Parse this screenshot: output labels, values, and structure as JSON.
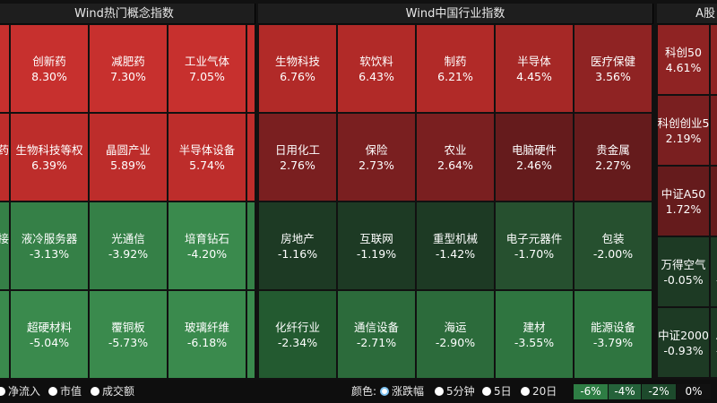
{
  "panels": {
    "hot": {
      "title": "Wind热门概念指数",
      "tiles": [
        {
          "name": "",
          "value": ""
        },
        {
          "name": "创新药",
          "value": "8.30%"
        },
        {
          "name": "减肥药",
          "value": "7.30%"
        },
        {
          "name": "工业气体",
          "value": "7.05%"
        },
        {
          "name": "",
          "value": ""
        },
        {
          "name": "药",
          "value": ""
        },
        {
          "name": "生物科技等权",
          "value": "6.39%"
        },
        {
          "name": "晶圆产业",
          "value": "5.89%"
        },
        {
          "name": "半导体设备",
          "value": "5.74%"
        },
        {
          "name": "",
          "value": ""
        },
        {
          "name": "接",
          "value": ""
        },
        {
          "name": "液冷服务器",
          "value": "-3.13%"
        },
        {
          "name": "光通信",
          "value": "-3.92%"
        },
        {
          "name": "培育钻石",
          "value": "-4.20%"
        },
        {
          "name": "",
          "value": ""
        },
        {
          "name": "",
          "value": ""
        },
        {
          "name": "超硬材料",
          "value": "-5.04%"
        },
        {
          "name": "覆铜板",
          "value": "-5.73%"
        },
        {
          "name": "玻璃纤维",
          "value": "-6.18%"
        },
        {
          "name": "",
          "value": ""
        }
      ]
    },
    "industry": {
      "title": "Wind中国行业指数",
      "tiles": [
        {
          "name": "生物科技",
          "value": "6.76%"
        },
        {
          "name": "软饮料",
          "value": "6.43%"
        },
        {
          "name": "制药",
          "value": "6.21%"
        },
        {
          "name": "半导体",
          "value": "4.45%"
        },
        {
          "name": "医疗保健",
          "value": "3.56%"
        },
        {
          "name": "日用化工",
          "value": "2.76%"
        },
        {
          "name": "保险",
          "value": "2.73%"
        },
        {
          "name": "农业",
          "value": "2.64%"
        },
        {
          "name": "电脑硬件",
          "value": "2.46%"
        },
        {
          "name": "贵金属",
          "value": "2.27%"
        },
        {
          "name": "房地产",
          "value": "-1.16%"
        },
        {
          "name": "互联网",
          "value": "-1.19%"
        },
        {
          "name": "重型机械",
          "value": "-1.42%"
        },
        {
          "name": "电子元器件",
          "value": "-1.70%"
        },
        {
          "name": "包装",
          "value": "-2.00%"
        },
        {
          "name": "化纤行业",
          "value": "-2.34%"
        },
        {
          "name": "通信设备",
          "value": "-2.71%"
        },
        {
          "name": "海运",
          "value": "-2.90%"
        },
        {
          "name": "建材",
          "value": "-3.55%"
        },
        {
          "name": "能源设备",
          "value": "-3.79%"
        }
      ]
    },
    "a_share": {
      "title": "A股",
      "tiles": [
        {
          "name": "科创50",
          "value": "4.61%"
        },
        {
          "name": "科",
          "value": "3"
        },
        {
          "name": "科创创业5",
          "value": "2.19%"
        },
        {
          "name": "上",
          "value": "%"
        },
        {
          "name": "中证A50",
          "value": "1.72%"
        },
        {
          "name": "科",
          "value": ""
        },
        {
          "name": "万得空气",
          "value": "-0.05%"
        },
        {
          "name": "国",
          "value": "-0"
        },
        {
          "name": "中证2000",
          "value": "-0.93%"
        },
        {
          "name": "A",
          "value": "-"
        }
      ]
    }
  },
  "footer": {
    "size_options": [
      {
        "label": "净流入"
      },
      {
        "label": "市值"
      },
      {
        "label": "成交额"
      }
    ],
    "color_label": "颜色:",
    "color_options": [
      {
        "label": "涨跌幅",
        "selected": true
      },
      {
        "label": "5分钟"
      },
      {
        "label": "5日"
      },
      {
        "label": "20日"
      }
    ],
    "legend": [
      {
        "label": "-6%",
        "color": "#2e7d44"
      },
      {
        "label": "-4%",
        "color": "#25623a"
      },
      {
        "label": "-2%",
        "color": "#1d4a2c"
      },
      {
        "label": "0%",
        "color": "#111111"
      }
    ]
  }
}
